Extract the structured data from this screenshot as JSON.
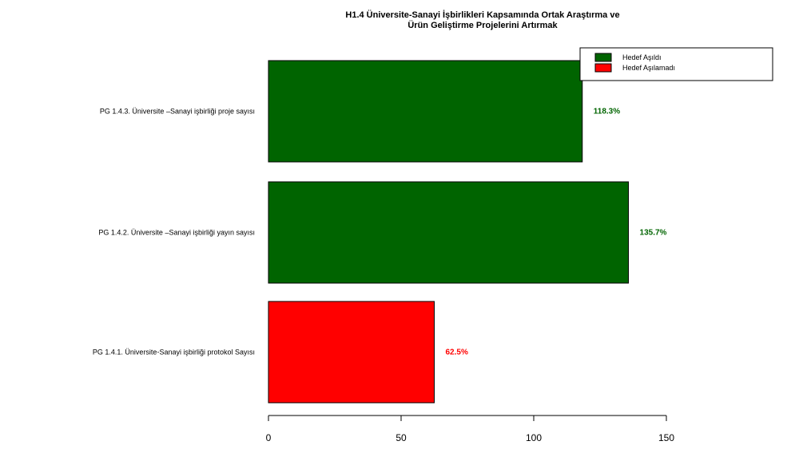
{
  "chart_data": {
    "type": "bar",
    "orientation": "horizontal",
    "title_lines": [
      "H1.4 Üniversite-Sanayi İşbirlikleri Kapsamında Ortak Araştırma ve",
      "Ürün Geliştirme Projelerini Artırmak"
    ],
    "categories": [
      "PG 1.4.3. Üniversite –Sanayi işbirliği proje sayısı",
      "PG 1.4.2. Üniversite –Sanayi işbirliği yayın sayısı",
      "PG 1.4.1. Üniversite-Sanayi işbirliği protokol Sayısı"
    ],
    "values": [
      118.3,
      135.7,
      62.5
    ],
    "value_labels": [
      "118.3%",
      "135.7%",
      "62.5%"
    ],
    "status": [
      "achieved",
      "achieved",
      "not_achieved"
    ],
    "xlim": [
      0,
      150
    ],
    "xticks": [
      0,
      50,
      100,
      150
    ],
    "xlabel": "",
    "ylabel": "",
    "grid": false,
    "legend": {
      "placement": "top-right",
      "entries": [
        {
          "key": "achieved",
          "label": "Hedef Aşıldı",
          "color": "#006400"
        },
        {
          "key": "not_achieved",
          "label": "Hedef Aşılamadı",
          "color": "#ff0000"
        }
      ]
    }
  }
}
